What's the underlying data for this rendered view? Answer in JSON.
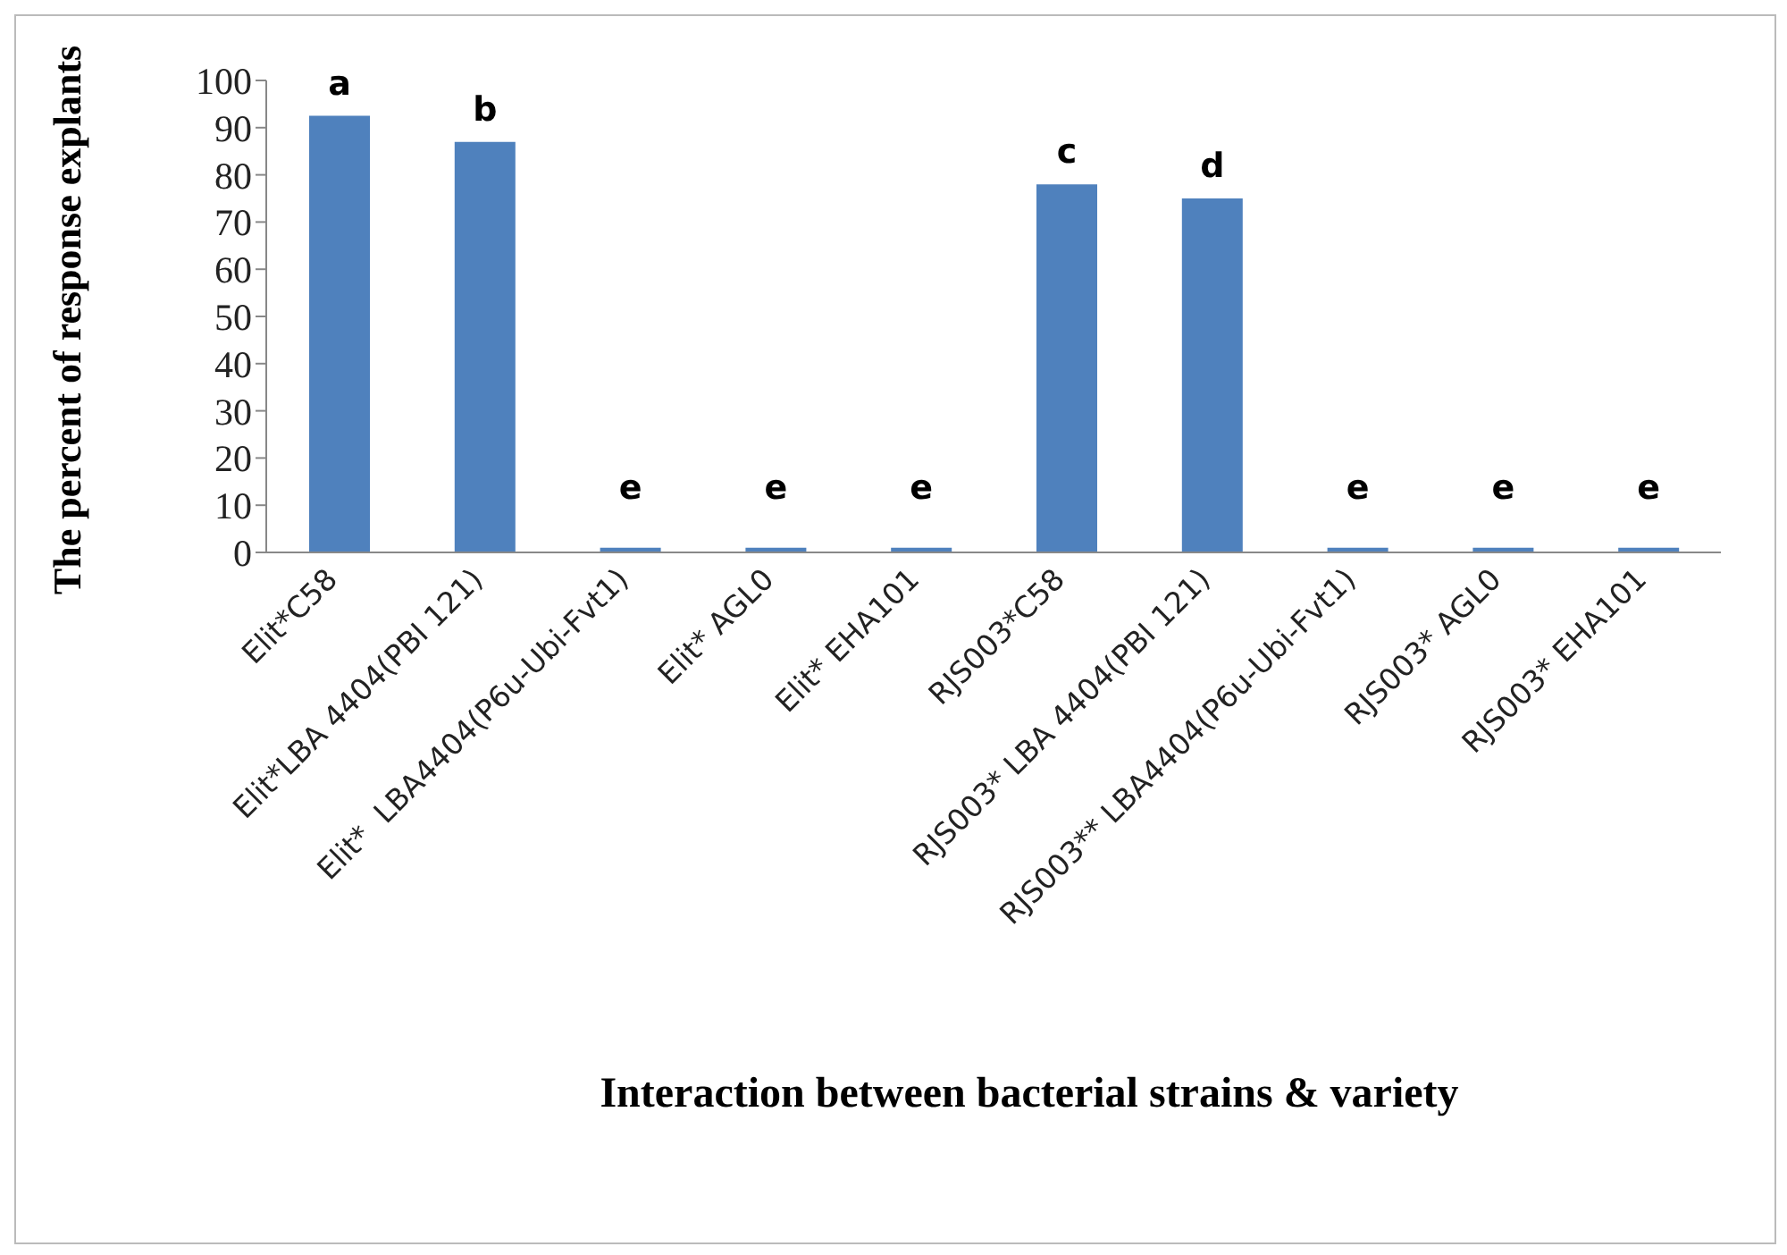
{
  "chart_data": {
    "type": "bar",
    "xlabel": "Interaction between bacterial strains & variety",
    "ylabel": "The percent of response explants",
    "categories": [
      "Elit*C58",
      "Elit*LBA 4404(PBI 121)",
      "Elit*  LBA4404(P6u-Ubi-Fvt1)",
      "Elit* AGL0",
      "Elit* EHA101",
      "RJS003*C58",
      "RJS003* LBA 4404(PBI 121)",
      "RJS003** LBA4404(P6u-Ubi-Fvt1)",
      "RJS003* AGL0",
      "RJS003* EHA101"
    ],
    "values": [
      92.5,
      87,
      1,
      1,
      1,
      78,
      75,
      1,
      1,
      1
    ],
    "value_labels": [
      "a",
      "b",
      "e",
      "e",
      "e",
      "c",
      "d",
      "e",
      "e",
      "e"
    ],
    "color": "#4f81bd",
    "ylim": [
      0,
      100
    ],
    "yticks": [
      0,
      10,
      20,
      30,
      40,
      50,
      60,
      70,
      80,
      90,
      100
    ]
  }
}
